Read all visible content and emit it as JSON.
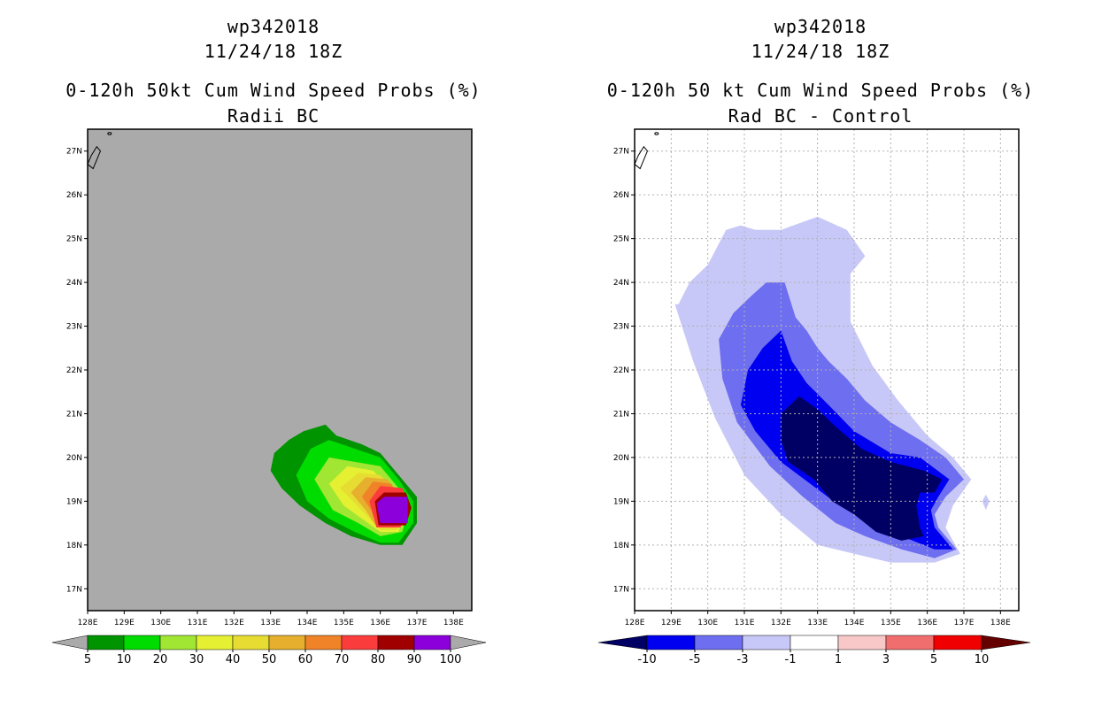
{
  "chart_data": [
    {
      "type": "heatmap",
      "title": [
        "wp342018",
        "11/24/18 18Z",
        "0-120h 50kt Cum Wind Speed Probs (%)",
        "Radii BC"
      ],
      "xlabel": "",
      "ylabel": "",
      "xlim": [
        128,
        138.5
      ],
      "ylim": [
        16.5,
        27.5
      ],
      "x_ticks": [
        "128E",
        "129E",
        "130E",
        "131E",
        "132E",
        "133E",
        "134E",
        "135E",
        "136E",
        "137E",
        "138E"
      ],
      "y_ticks": [
        "17N",
        "18N",
        "19N",
        "20N",
        "21N",
        "22N",
        "23N",
        "24N",
        "25N",
        "26N",
        "27N"
      ],
      "background": "#aaaaaa",
      "grid": false,
      "colorbar": {
        "labels": [
          "5",
          "10",
          "20",
          "30",
          "40",
          "50",
          "60",
          "70",
          "80",
          "90",
          "100"
        ],
        "colors": [
          "#009400",
          "#00dc00",
          "#a0e632",
          "#e6f032",
          "#e6dc32",
          "#e6af2d",
          "#f08228",
          "#fa3c3c",
          "#a00000",
          "#8c00dc"
        ],
        "low_color": "#aaaaaa",
        "high_color": "#aaaaaa"
      },
      "contours": [
        {
          "level": 5,
          "color": "#009400",
          "points": [
            [
              133,
              19.7
            ],
            [
              133.1,
              20.1
            ],
            [
              133.5,
              20.4
            ],
            [
              133.9,
              20.6
            ],
            [
              134.5,
              20.75
            ],
            [
              134.8,
              20.5
            ],
            [
              135.5,
              20.3
            ],
            [
              136,
              20.1
            ],
            [
              136.5,
              19.6
            ],
            [
              137,
              19.1
            ],
            [
              137,
              18.5
            ],
            [
              136.6,
              18
            ],
            [
              136,
              18
            ],
            [
              135.2,
              18.2
            ],
            [
              134.5,
              18.5
            ],
            [
              133.8,
              18.9
            ],
            [
              133.3,
              19.3
            ]
          ]
        },
        {
          "level": 10,
          "color": "#00dc00",
          "points": [
            [
              133.7,
              19.6
            ],
            [
              134.1,
              20.2
            ],
            [
              134.6,
              20.4
            ],
            [
              135.3,
              20.2
            ],
            [
              136,
              20
            ],
            [
              136.5,
              19.5
            ],
            [
              136.9,
              19
            ],
            [
              136.9,
              18.5
            ],
            [
              136.5,
              18.05
            ],
            [
              136,
              18.05
            ],
            [
              135.3,
              18.3
            ],
            [
              134.6,
              18.6
            ],
            [
              134,
              19
            ]
          ]
        },
        {
          "level": 20,
          "color": "#a0e632",
          "points": [
            [
              134.2,
              19.5
            ],
            [
              134.6,
              20
            ],
            [
              135.3,
              19.9
            ],
            [
              136,
              19.8
            ],
            [
              136.5,
              19.3
            ],
            [
              136.8,
              18.9
            ],
            [
              136.6,
              18.3
            ],
            [
              136,
              18.2
            ],
            [
              135.4,
              18.5
            ],
            [
              134.7,
              18.8
            ]
          ]
        },
        {
          "level": 30,
          "color": "#e6f032",
          "points": [
            [
              134.6,
              19.4
            ],
            [
              135.1,
              19.8
            ],
            [
              135.8,
              19.7
            ],
            [
              136.4,
              19.2
            ],
            [
              136.7,
              18.8
            ],
            [
              136.5,
              18.3
            ],
            [
              136,
              18.3
            ],
            [
              135.5,
              18.6
            ],
            [
              135,
              18.9
            ]
          ]
        },
        {
          "level": 40,
          "color": "#e6dc32",
          "points": [
            [
              134.9,
              19.3
            ],
            [
              135.4,
              19.65
            ],
            [
              136,
              19.6
            ],
            [
              136.45,
              19.2
            ],
            [
              136.65,
              18.8
            ],
            [
              136.45,
              18.35
            ],
            [
              136,
              18.35
            ],
            [
              135.6,
              18.7
            ]
          ]
        },
        {
          "level": 50,
          "color": "#e6af2d",
          "points": [
            [
              135.2,
              19.2
            ],
            [
              135.6,
              19.55
            ],
            [
              136.2,
              19.5
            ],
            [
              136.5,
              19.15
            ],
            [
              136.6,
              18.8
            ],
            [
              136.4,
              18.4
            ],
            [
              135.9,
              18.4
            ],
            [
              135.6,
              18.8
            ]
          ]
        },
        {
          "level": 60,
          "color": "#f08228",
          "points": [
            [
              135.5,
              19.1
            ],
            [
              135.8,
              19.45
            ],
            [
              136.3,
              19.4
            ],
            [
              136.5,
              19.1
            ],
            [
              136.55,
              18.8
            ],
            [
              136.35,
              18.45
            ],
            [
              135.9,
              18.45
            ],
            [
              135.75,
              18.8
            ]
          ]
        },
        {
          "level": 70,
          "color": "#fa3c3c",
          "points": [
            [
              135.7,
              19
            ],
            [
              136,
              19.35
            ],
            [
              136.6,
              19.3
            ],
            [
              136.8,
              18.9
            ],
            [
              136.55,
              18.4
            ],
            [
              135.9,
              18.4
            ]
          ]
        },
        {
          "level": 80,
          "color": "#a00000",
          "points": [
            [
              135.85,
              19
            ],
            [
              136.1,
              19.2
            ],
            [
              136.7,
              19.2
            ],
            [
              136.85,
              18.85
            ],
            [
              136.7,
              18.45
            ],
            [
              135.95,
              18.45
            ]
          ]
        },
        {
          "level": 90,
          "color": "#8c00dc",
          "points": [
            [
              135.9,
              18.95
            ],
            [
              136.1,
              19.1
            ],
            [
              136.75,
              19.1
            ],
            [
              136.75,
              18.5
            ],
            [
              136,
              18.5
            ]
          ]
        }
      ]
    },
    {
      "type": "heatmap",
      "title": [
        "wp342018",
        "11/24/18 18Z",
        "0-120h 50 kt Cum Wind Speed Probs (%)",
        "Rad BC - Control"
      ],
      "xlabel": "",
      "ylabel": "",
      "xlim": [
        128,
        138.5
      ],
      "ylim": [
        16.5,
        27.5
      ],
      "x_ticks": [
        "128E",
        "129E",
        "130E",
        "131E",
        "132E",
        "133E",
        "134E",
        "135E",
        "136E",
        "137E",
        "138E"
      ],
      "y_ticks": [
        "17N",
        "18N",
        "19N",
        "20N",
        "21N",
        "22N",
        "23N",
        "24N",
        "25N",
        "26N",
        "27N"
      ],
      "background": "#ffffff",
      "grid": true,
      "colorbar": {
        "labels": [
          "-10",
          "-5",
          "-3",
          "-1",
          "1",
          "3",
          "5",
          "10"
        ],
        "colors": [
          "#0000f0",
          "#6e6ef0",
          "#c8c8f8",
          "#ffffff",
          "#f8c8c8",
          "#f06e6e",
          "#f00000"
        ],
        "low_color": "#000064",
        "high_color": "#640000"
      },
      "contours": [
        {
          "level": -1,
          "color": "#c8c8f8",
          "points": [
            [
              129.2,
              23.5
            ],
            [
              129.5,
              24
            ],
            [
              130,
              24.4
            ],
            [
              130.5,
              25.2
            ],
            [
              130.9,
              25.3
            ],
            [
              131.3,
              25.2
            ],
            [
              132,
              25.2
            ],
            [
              133,
              25.5
            ],
            [
              133.8,
              25.2
            ],
            [
              134.3,
              24.6
            ],
            [
              133.9,
              24.2
            ],
            [
              133.9,
              23.1
            ],
            [
              134.5,
              22.1
            ],
            [
              135.2,
              21.3
            ],
            [
              136,
              20.5
            ],
            [
              136.7,
              20
            ],
            [
              137.2,
              19.5
            ],
            [
              136.7,
              18.9
            ],
            [
              136.5,
              18.4
            ],
            [
              136.9,
              17.8
            ],
            [
              136.2,
              17.6
            ],
            [
              135,
              17.6
            ],
            [
              134,
              17.8
            ],
            [
              133,
              18
            ],
            [
              132,
              18.7
            ],
            [
              131,
              19.6
            ],
            [
              130.2,
              20.9
            ],
            [
              129.6,
              22.2
            ],
            [
              129.1,
              23.5
            ]
          ]
        },
        {
          "level": -1,
          "color": "#c8c8f8",
          "points": [
            [
              137.5,
              19
            ],
            [
              137.6,
              18.8
            ],
            [
              137.7,
              19
            ],
            [
              137.6,
              19.15
            ]
          ]
        },
        {
          "level": -3,
          "color": "#6e6ef0",
          "points": [
            [
              130.3,
              22.7
            ],
            [
              130.7,
              23.3
            ],
            [
              131.2,
              23.7
            ],
            [
              131.6,
              24
            ],
            [
              132.1,
              24
            ],
            [
              132.4,
              23.2
            ],
            [
              132.7,
              22.9
            ],
            [
              133,
              22.5
            ],
            [
              133.3,
              22.2
            ],
            [
              133.8,
              21.8
            ],
            [
              134.3,
              21.3
            ],
            [
              135,
              20.8
            ],
            [
              135.8,
              20.4
            ],
            [
              136.5,
              20
            ],
            [
              137,
              19.5
            ],
            [
              136.5,
              19.1
            ],
            [
              136.2,
              18.7
            ],
            [
              136.3,
              18.4
            ],
            [
              136.8,
              17.9
            ],
            [
              136.2,
              17.7
            ],
            [
              135.3,
              17.9
            ],
            [
              134.3,
              18.2
            ],
            [
              133.5,
              18.5
            ],
            [
              132.6,
              19.1
            ],
            [
              131.7,
              19.8
            ],
            [
              130.8,
              20.8
            ],
            [
              130.4,
              21.8
            ]
          ]
        },
        {
          "level": -5,
          "color": "#0000f0",
          "points": [
            [
              130.9,
              21.2
            ],
            [
              131.1,
              22
            ],
            [
              131.5,
              22.5
            ],
            [
              132,
              22.9
            ],
            [
              132.3,
              22.2
            ],
            [
              132.7,
              21.7
            ],
            [
              133.3,
              21.2
            ],
            [
              134,
              20.6
            ],
            [
              135,
              20.1
            ],
            [
              135.8,
              20
            ],
            [
              136.6,
              19.5
            ],
            [
              136.3,
              19.1
            ],
            [
              136.1,
              18.8
            ],
            [
              136.2,
              18.4
            ],
            [
              136.7,
              17.9
            ],
            [
              136.2,
              17.9
            ],
            [
              135.3,
              18.2
            ],
            [
              134.5,
              18.5
            ],
            [
              133.6,
              18.9
            ],
            [
              132.8,
              19.4
            ],
            [
              132,
              19.9
            ],
            [
              131.3,
              20.6
            ]
          ]
        },
        {
          "level": -10,
          "color": "#000064",
          "points": [
            [
              132,
              21
            ],
            [
              132.5,
              21.4
            ],
            [
              133,
              21.1
            ],
            [
              133.5,
              20.7
            ],
            [
              134.2,
              20.2
            ],
            [
              135,
              19.9
            ],
            [
              135.9,
              19.7
            ],
            [
              136.4,
              19.5
            ],
            [
              136.2,
              19.2
            ],
            [
              135.8,
              19.2
            ],
            [
              135.7,
              18.9
            ],
            [
              135.8,
              18.4
            ],
            [
              135.9,
              18.2
            ],
            [
              135.3,
              18.1
            ],
            [
              134.6,
              18.3
            ],
            [
              134,
              18.7
            ],
            [
              133.4,
              19
            ],
            [
              132.9,
              19.5
            ],
            [
              132.2,
              19.9
            ],
            [
              132,
              20.4
            ]
          ]
        }
      ]
    }
  ]
}
